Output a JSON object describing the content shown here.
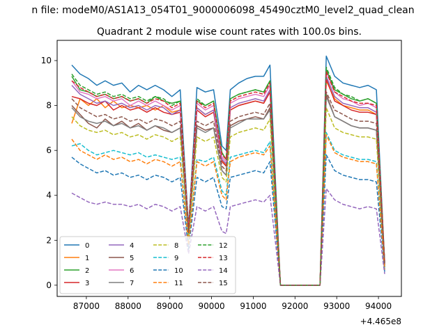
{
  "chart_data": {
    "type": "line",
    "suptitle": "n file: modeM0/AS1A13_054T01_9000006098_45490cztM0_level2_quad_clean",
    "title": "Quadrant 2 module wise count rates with 100.0s bins.",
    "xlabel": "",
    "ylabel": "",
    "x_offset_label": "+4.465e8",
    "xlim": [
      86300,
      94550
    ],
    "ylim": [
      -0.5,
      10.9
    ],
    "xticks": [
      87000,
      88000,
      89000,
      90000,
      91000,
      92000,
      93000,
      94000
    ],
    "yticks": [
      0,
      2,
      4,
      6,
      8,
      10
    ],
    "grid": false,
    "legend_position": "lower-left",
    "legend_ncol": 4,
    "x": [
      86650,
      86850,
      87050,
      87250,
      87450,
      87650,
      87850,
      88050,
      88250,
      88450,
      88650,
      88850,
      89050,
      89250,
      89450,
      89650,
      89850,
      90050,
      90250,
      90350,
      90450,
      90650,
      90850,
      91050,
      91250,
      91400,
      91650,
      92100,
      92600,
      92750,
      92950,
      93150,
      93350,
      93550,
      93750,
      93950,
      94150
    ],
    "series": [
      {
        "name": "0",
        "color": "#1f77b4",
        "dash": "solid",
        "values": [
          9.8,
          9.4,
          9.2,
          8.9,
          9.1,
          8.9,
          9.0,
          8.6,
          8.9,
          8.7,
          8.9,
          8.7,
          8.4,
          8.7,
          2.6,
          8.8,
          8.6,
          8.7,
          6.2,
          6.0,
          8.7,
          9.0,
          9.2,
          9.3,
          9.3,
          9.8,
          0.0,
          0.0,
          0.0,
          10.2,
          9.3,
          9.0,
          8.9,
          8.8,
          8.9,
          8.7,
          1.0
        ]
      },
      {
        "name": "1",
        "color": "#ff7f0e",
        "dash": "solid",
        "values": [
          7.2,
          8.3,
          8.0,
          8.3,
          7.9,
          8.2,
          7.9,
          8.0,
          7.9,
          8.0,
          7.8,
          8.0,
          7.7,
          7.8,
          2.3,
          7.9,
          7.6,
          7.8,
          5.6,
          5.3,
          7.8,
          8.0,
          8.1,
          8.2,
          8.1,
          8.6,
          0.0,
          0.0,
          0.0,
          9.1,
          8.3,
          8.0,
          7.9,
          7.8,
          7.8,
          7.6,
          0.9
        ]
      },
      {
        "name": "2",
        "color": "#2ca02c",
        "dash": "solid",
        "values": [
          9.3,
          8.7,
          8.6,
          8.4,
          8.5,
          8.3,
          8.4,
          8.2,
          8.3,
          8.1,
          8.4,
          8.2,
          8.1,
          8.2,
          2.5,
          8.2,
          8.0,
          8.2,
          5.9,
          5.6,
          8.3,
          8.5,
          8.6,
          8.7,
          8.6,
          9.1,
          0.0,
          0.0,
          0.0,
          9.6,
          8.7,
          8.5,
          8.3,
          8.2,
          8.3,
          8.1,
          1.0
        ]
      },
      {
        "name": "3",
        "color": "#d62728",
        "dash": "solid",
        "values": [
          8.4,
          8.3,
          8.1,
          8.0,
          8.2,
          7.8,
          8.0,
          7.8,
          7.9,
          7.7,
          7.9,
          7.7,
          7.6,
          7.7,
          2.4,
          7.8,
          7.5,
          7.7,
          5.5,
          5.3,
          7.8,
          8.0,
          8.1,
          8.2,
          8.1,
          8.6,
          0.0,
          0.0,
          0.0,
          9.2,
          8.2,
          8.0,
          7.8,
          7.7,
          7.7,
          7.6,
          0.9
        ]
      },
      {
        "name": "4",
        "color": "#9467bd",
        "dash": "solid",
        "values": [
          8.9,
          8.5,
          8.3,
          8.1,
          8.2,
          8.0,
          8.1,
          7.9,
          8.0,
          7.8,
          8.0,
          7.9,
          7.6,
          7.8,
          2.4,
          7.9,
          7.6,
          7.8,
          5.6,
          5.4,
          7.9,
          8.1,
          8.2,
          8.3,
          8.2,
          8.7,
          0.0,
          0.0,
          0.0,
          9.3,
          8.4,
          8.1,
          8.0,
          7.9,
          7.9,
          7.7,
          0.9
        ]
      },
      {
        "name": "5",
        "color": "#8c564b",
        "dash": "solid",
        "values": [
          8.0,
          7.6,
          7.2,
          7.0,
          7.4,
          7.1,
          7.3,
          7.0,
          7.2,
          6.9,
          7.1,
          6.9,
          6.8,
          7.0,
          2.2,
          7.1,
          6.9,
          7.0,
          5.1,
          4.9,
          7.1,
          7.3,
          7.4,
          7.5,
          7.4,
          7.9,
          0.0,
          0.0,
          0.0,
          8.5,
          7.5,
          7.3,
          7.1,
          7.0,
          7.0,
          6.9,
          0.8
        ]
      },
      {
        "name": "6",
        "color": "#e377c2",
        "dash": "solid",
        "values": [
          9.1,
          8.6,
          8.5,
          8.3,
          8.4,
          8.2,
          8.3,
          8.0,
          8.2,
          8.0,
          8.2,
          8.0,
          7.8,
          8.0,
          2.5,
          8.1,
          7.8,
          8.0,
          5.7,
          5.5,
          8.1,
          8.3,
          8.4,
          8.5,
          8.4,
          8.9,
          0.0,
          0.0,
          0.0,
          9.5,
          8.6,
          8.3,
          8.2,
          8.0,
          8.1,
          7.9,
          1.0
        ]
      },
      {
        "name": "7",
        "color": "#7f7f7f",
        "dash": "solid",
        "values": [
          7.9,
          7.5,
          7.3,
          7.2,
          7.3,
          7.1,
          7.2,
          7.0,
          7.1,
          6.9,
          7.1,
          7.0,
          6.8,
          7.0,
          2.2,
          7.0,
          6.8,
          7.0,
          5.1,
          4.9,
          7.0,
          7.2,
          7.4,
          7.4,
          7.4,
          7.8,
          0.0,
          0.0,
          0.0,
          8.4,
          7.5,
          7.3,
          7.1,
          7.0,
          7.0,
          6.9,
          0.8
        ]
      },
      {
        "name": "8",
        "color": "#bcbd22",
        "dash": "dashed",
        "values": [
          7.5,
          7.1,
          6.9,
          6.8,
          6.9,
          6.7,
          6.8,
          6.6,
          6.7,
          6.5,
          6.7,
          6.6,
          6.4,
          6.6,
          2.1,
          6.6,
          6.4,
          6.6,
          4.8,
          4.6,
          6.6,
          6.8,
          6.9,
          7.0,
          6.9,
          7.4,
          0.0,
          0.0,
          0.0,
          7.9,
          7.0,
          6.8,
          6.7,
          6.6,
          6.6,
          6.5,
          0.8
        ]
      },
      {
        "name": "9",
        "color": "#17becf",
        "dash": "dashed",
        "values": [
          6.2,
          6.3,
          6.0,
          5.8,
          5.9,
          6.0,
          5.9,
          5.8,
          5.9,
          5.7,
          5.8,
          5.7,
          5.6,
          5.7,
          1.8,
          5.6,
          5.5,
          5.7,
          4.2,
          4.0,
          5.7,
          5.8,
          5.9,
          6.0,
          5.9,
          6.4,
          0.0,
          0.0,
          0.0,
          6.8,
          6.0,
          5.8,
          5.7,
          5.6,
          5.6,
          5.5,
          0.7
        ]
      },
      {
        "name": "10",
        "color": "#1f77b4",
        "dash": "dashed",
        "values": [
          5.7,
          5.4,
          5.2,
          5.0,
          5.1,
          4.9,
          5.0,
          4.8,
          4.9,
          4.7,
          4.9,
          4.8,
          4.6,
          4.8,
          1.6,
          4.8,
          4.6,
          4.8,
          3.5,
          3.4,
          4.8,
          4.9,
          5.0,
          5.1,
          5.0,
          5.5,
          0.0,
          0.0,
          0.0,
          5.8,
          5.1,
          4.9,
          4.8,
          4.7,
          4.7,
          4.6,
          0.6
        ]
      },
      {
        "name": "11",
        "color": "#ff7f0e",
        "dash": "dashed",
        "values": [
          6.5,
          6.0,
          5.8,
          5.6,
          5.8,
          5.6,
          5.7,
          5.5,
          5.6,
          5.4,
          5.6,
          5.5,
          5.3,
          5.5,
          1.8,
          5.5,
          5.3,
          5.5,
          4.0,
          3.8,
          5.5,
          5.7,
          5.8,
          5.9,
          5.8,
          6.2,
          0.0,
          0.0,
          0.0,
          6.7,
          5.9,
          5.7,
          5.6,
          5.5,
          5.5,
          5.4,
          0.7
        ]
      },
      {
        "name": "12",
        "color": "#2ca02c",
        "dash": "dashed",
        "values": [
          9.4,
          8.9,
          8.7,
          8.5,
          8.6,
          8.4,
          8.5,
          8.3,
          8.4,
          8.2,
          8.4,
          8.3,
          8.0,
          8.2,
          2.5,
          8.3,
          8.0,
          8.2,
          5.9,
          5.6,
          8.3,
          8.5,
          8.6,
          8.7,
          8.6,
          9.1,
          0.0,
          0.0,
          0.0,
          9.7,
          8.8,
          8.5,
          8.4,
          8.2,
          8.3,
          8.1,
          1.0
        ]
      },
      {
        "name": "13",
        "color": "#d62728",
        "dash": "dashed",
        "values": [
          9.1,
          8.8,
          8.6,
          8.4,
          8.5,
          8.3,
          8.4,
          8.2,
          8.3,
          8.1,
          8.3,
          8.2,
          7.9,
          8.1,
          2.5,
          8.2,
          7.9,
          8.1,
          5.8,
          5.6,
          8.2,
          8.4,
          8.5,
          8.6,
          8.5,
          9.0,
          0.0,
          0.0,
          0.0,
          9.5,
          8.6,
          8.4,
          8.2,
          8.1,
          8.1,
          8.0,
          1.0
        ]
      },
      {
        "name": "14",
        "color": "#9467bd",
        "dash": "dashed",
        "values": [
          4.1,
          3.9,
          3.7,
          3.6,
          3.7,
          3.6,
          3.6,
          3.5,
          3.6,
          3.4,
          3.6,
          3.5,
          3.3,
          3.5,
          1.4,
          3.5,
          3.3,
          3.5,
          2.4,
          2.3,
          3.5,
          3.6,
          3.7,
          3.8,
          3.7,
          4.0,
          0.0,
          0.0,
          0.0,
          4.3,
          3.8,
          3.6,
          3.5,
          3.4,
          3.5,
          3.4,
          0.5
        ]
      },
      {
        "name": "15",
        "color": "#8c564b",
        "dash": "dashed",
        "values": [
          8.3,
          7.9,
          7.7,
          7.5,
          7.6,
          7.4,
          7.5,
          7.3,
          7.4,
          7.2,
          7.4,
          7.3,
          7.1,
          7.3,
          2.3,
          7.3,
          7.1,
          7.3,
          5.3,
          5.1,
          7.3,
          7.5,
          7.6,
          7.7,
          7.6,
          8.1,
          0.0,
          0.0,
          0.0,
          8.6,
          7.8,
          7.6,
          7.4,
          7.3,
          7.3,
          7.2,
          0.9
        ]
      }
    ]
  }
}
